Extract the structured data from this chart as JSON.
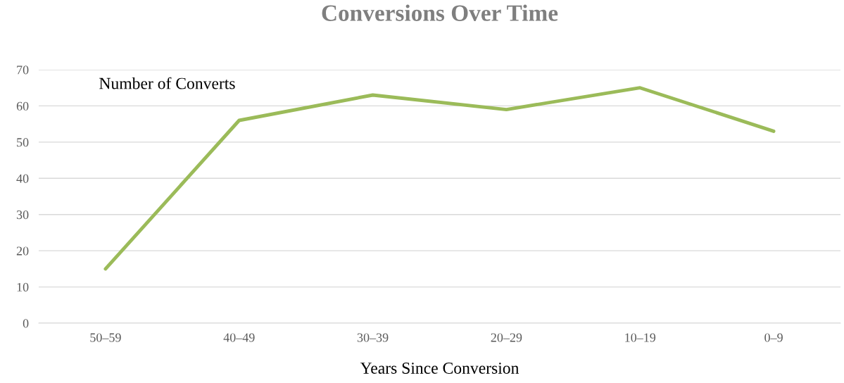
{
  "chart_data": {
    "type": "line",
    "title": "Conversions Over Time",
    "xlabel": "Years Since Conversion",
    "categories": [
      "50–59",
      "40–49",
      "30–39",
      "20–29",
      "10–19",
      "0–9"
    ],
    "series": [
      {
        "color": "#9bbb59",
        "values": [
          15,
          56,
          63,
          59,
          65,
          53
        ]
      }
    ],
    "annotations": [
      "Number of Converts"
    ],
    "ylim": [
      0,
      70
    ],
    "yticks": [
      0,
      10,
      20,
      30,
      40,
      50,
      60,
      70
    ],
    "grid": "y",
    "legend": false,
    "marker": "none",
    "line_style": "solid"
  }
}
